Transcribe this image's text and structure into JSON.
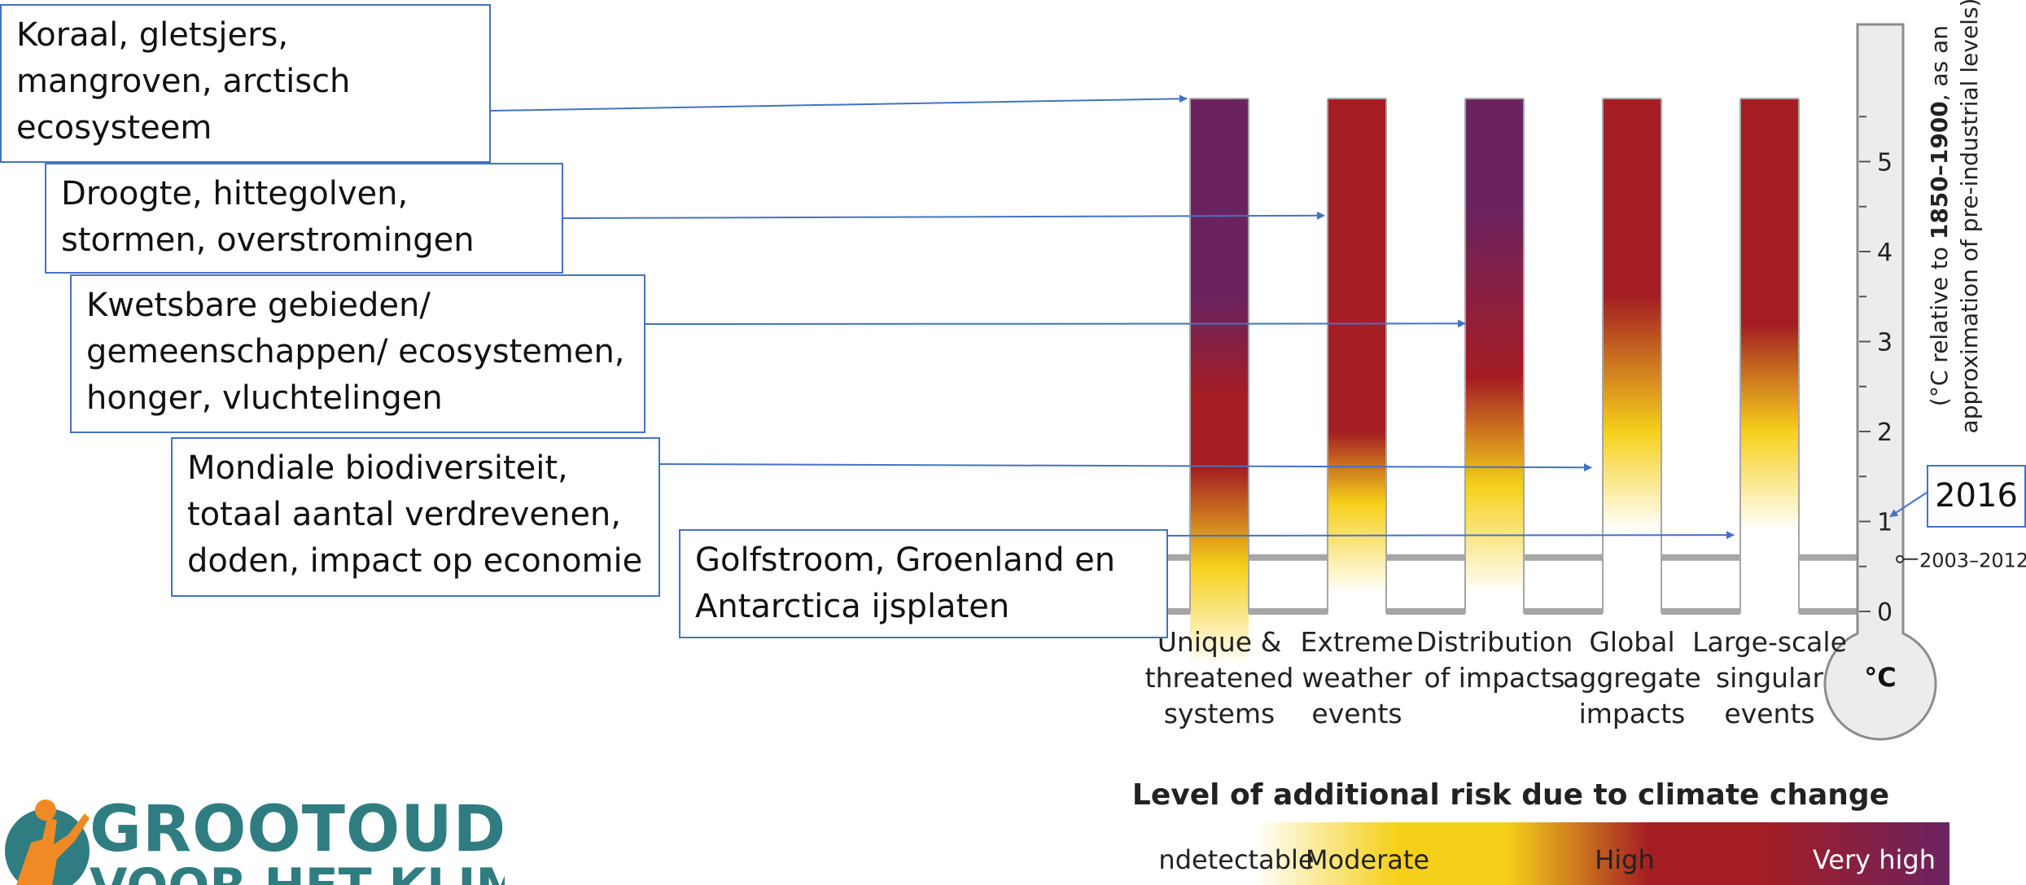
{
  "colors": {
    "undetectable": "#ffffff",
    "moderate": "#f5d01a",
    "high": "#a41d23",
    "very_high": "#6b2360",
    "callout_border": "#4472c4",
    "frame": "#a6a6a6",
    "logo": "#2f7d80"
  },
  "callouts": [
    {
      "text": "Koraal, gletsjers,\nmangroven, arctisch\necosysteem"
    },
    {
      "text": "Droogte, hittegolven,\nstormen, overstromingen"
    },
    {
      "text": "Kwetsbare gebieden/\ngemeenschappen/ ecosystemen,\nhonger, vluchtelingen"
    },
    {
      "text": "Mondiale biodiversiteit,\ntotaal aantal verdrevenen,\ndoden, impact op economie"
    },
    {
      "text": "Golfstroom, Groenland en\nAntarctica ijsplaten"
    },
    {
      "text": "2016"
    }
  ],
  "chart_data": {
    "type": "bar",
    "categories": [
      [
        "Unique &",
        "threatened",
        "systems"
      ],
      [
        "Extreme",
        "weather",
        "events"
      ],
      [
        "Distribution",
        "of impacts"
      ],
      [
        "Global",
        "aggregate",
        "impacts"
      ],
      [
        "Large-scale",
        "singular",
        "events"
      ]
    ],
    "risk_gradients": [
      [
        [
          -0.6,
          "undetectable"
        ],
        [
          0.5,
          "moderate"
        ],
        [
          1.6,
          "high"
        ],
        [
          2.4,
          "high"
        ],
        [
          3.5,
          "very_high"
        ],
        [
          5.7,
          "very_high"
        ]
      ],
      [
        [
          0.2,
          "undetectable"
        ],
        [
          1.2,
          "moderate"
        ],
        [
          2.0,
          "high"
        ],
        [
          4.5,
          "high"
        ],
        [
          5.7,
          "high"
        ]
      ],
      [
        [
          0.2,
          "undetectable"
        ],
        [
          1.4,
          "moderate"
        ],
        [
          2.6,
          "high"
        ],
        [
          4.5,
          "very_high"
        ],
        [
          5.7,
          "very_high"
        ]
      ],
      [
        [
          0.9,
          "undetectable"
        ],
        [
          2.0,
          "moderate"
        ],
        [
          3.5,
          "high"
        ],
        [
          5.7,
          "high"
        ]
      ],
      [
        [
          0.9,
          "undetectable"
        ],
        [
          2.0,
          "moderate"
        ],
        [
          3.2,
          "high"
        ],
        [
          5.7,
          "high"
        ]
      ]
    ],
    "bar_range": [
      -0.6,
      5.7
    ],
    "axis": {
      "ticks": [
        0,
        1,
        2,
        3,
        4,
        5
      ],
      "ylim": [
        0,
        5.7
      ],
      "label_prefix": "(°C relative to ",
      "label_bold": "1850–1900",
      "label_suffix": ", as an",
      "label_line2": "approximation of pre-industrial levels)",
      "unit": "°C"
    },
    "reference_lines": [
      0,
      0.6
    ],
    "reference_label": "2003–2012",
    "reference_value": 0.6,
    "marker_2016": 1.0,
    "callout_targets": [
      5.7,
      4.4,
      3.2,
      1.6,
      0.85
    ],
    "legend": {
      "title": "Level of additional risk due to climate change",
      "labels": [
        "Undetectable",
        "Moderate",
        "High",
        "Very high"
      ]
    }
  },
  "logo": {
    "line1": "GROOTOUDERS",
    "line2": "VOOR HET KLIMAAT"
  }
}
